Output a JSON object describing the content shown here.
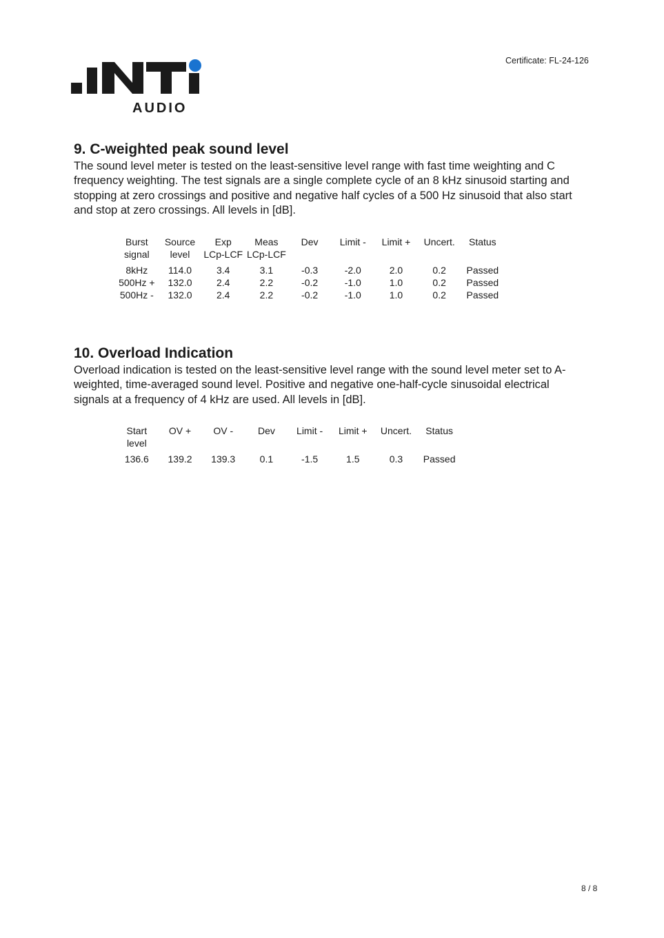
{
  "header": {
    "logo_text": ".iNTi AUDIO",
    "certificate": "Certificate: FL-24-126",
    "logo_accent": "#1a73d0"
  },
  "section9": {
    "title": "9. C-weighted peak sound level",
    "body": "The sound level meter is tested on the least-sensitive level range with fast time weighting and C frequency weighting. The test signals are a single complete cycle of an 8 kHz sinusoid starting and stopping at zero crossings and positive and negative half cycles of a 500 Hz sinusoid that also start and stop at zero crossings. All levels in [dB].",
    "headers": [
      [
        "Burst",
        "signal"
      ],
      [
        "Source",
        "level"
      ],
      [
        "Exp",
        "LCp-LCF"
      ],
      [
        "Meas",
        "LCp-LCF"
      ],
      [
        "Dev",
        ""
      ],
      [
        "Limit -",
        ""
      ],
      [
        "Limit +",
        ""
      ],
      [
        "Uncert.",
        ""
      ],
      [
        "Status",
        ""
      ]
    ],
    "rows": [
      [
        "8kHz",
        "114.0",
        "3.4",
        "3.1",
        "-0.3",
        "-2.0",
        "2.0",
        "0.2",
        "Passed"
      ],
      [
        "500Hz +",
        "132.0",
        "2.4",
        "2.2",
        "-0.2",
        "-1.0",
        "1.0",
        "0.2",
        "Passed"
      ],
      [
        "500Hz -",
        "132.0",
        "2.4",
        "2.2",
        "-0.2",
        "-1.0",
        "1.0",
        "0.2",
        "Passed"
      ]
    ]
  },
  "section10": {
    "title": "10. Overload Indication",
    "body": "Overload indication is tested on the least-sensitive level range with the sound level meter set to A-weighted, time-averaged sound level. Positive and negative one-half-cycle sinusoidal electrical signals at a frequency of 4 kHz are used. All levels in [dB].",
    "headers": [
      [
        "Start",
        "level"
      ],
      [
        "OV +",
        ""
      ],
      [
        "OV -",
        ""
      ],
      [
        "Dev",
        ""
      ],
      [
        "Limit -",
        ""
      ],
      [
        "Limit +",
        ""
      ],
      [
        "Uncert.",
        ""
      ],
      [
        "Status",
        ""
      ]
    ],
    "rows": [
      [
        "136.6",
        "139.2",
        "139.3",
        "0.1",
        "-1.5",
        "1.5",
        "0.3",
        "Passed"
      ]
    ]
  },
  "footer": {
    "page": "8 / 8"
  }
}
